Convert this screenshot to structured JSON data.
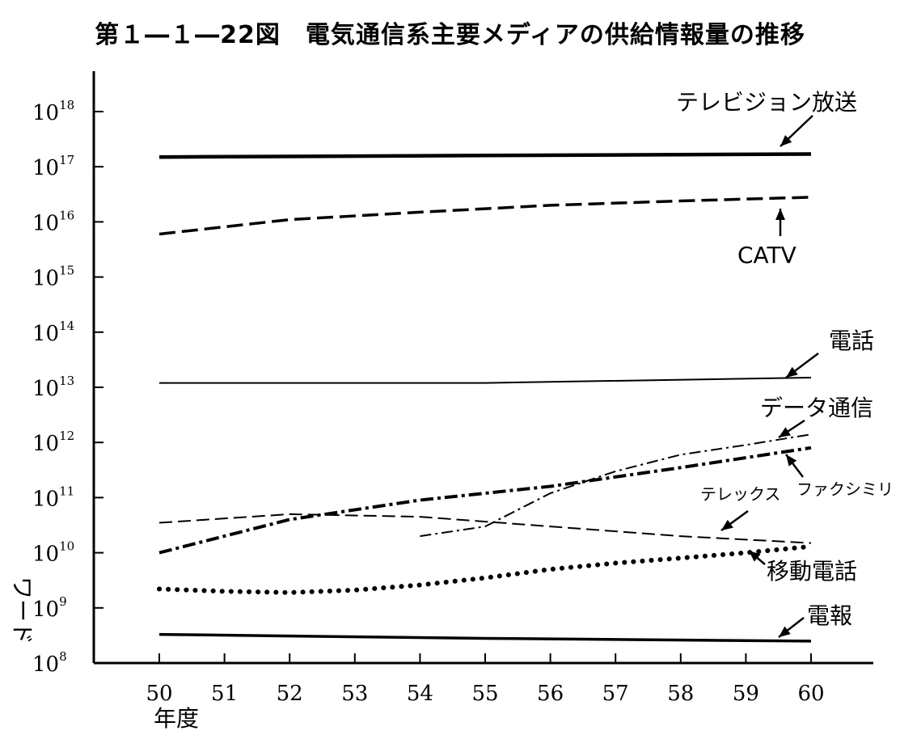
{
  "chart_data": {
    "type": "line",
    "title": "第１―１―22図　電気通信系主要メディアの供給情報量の推移",
    "xlabel": "年度",
    "ylabel": "ワード",
    "y_scale": "log",
    "ylim": [
      100000000,
      1000000000000000000
    ],
    "y_tick_base": "10",
    "y_tick_exponents": [
      "8",
      "9",
      "10",
      "11",
      "12",
      "13",
      "14",
      "15",
      "16",
      "17",
      "18"
    ],
    "x_ticks": [
      "50",
      "51",
      "52",
      "53",
      "54",
      "55",
      "56",
      "57",
      "58",
      "59",
      "60"
    ],
    "grid": false,
    "legend": "none (direct labels)",
    "series": [
      {
        "name": "テレビジョン放送",
        "style": "solid-thick",
        "x": [
          50,
          55,
          60
        ],
        "y": [
          1.5e+17,
          1.6e+17,
          1.7e+17
        ]
      },
      {
        "name": "CATV",
        "style": "dashed-thick",
        "x": [
          50,
          52,
          54,
          56,
          58,
          60
        ],
        "y": [
          6000000000000000.0,
          1.1e+16,
          1.5e+16,
          2e+16,
          2.4e+16,
          2.8e+16
        ]
      },
      {
        "name": "電話",
        "style": "solid-thin",
        "x": [
          50,
          55,
          60
        ],
        "y": [
          12000000000000.0,
          12000000000000.0,
          15000000000000.0
        ]
      },
      {
        "name": "データ通信",
        "style": "dash-dot-thin",
        "x": [
          54,
          55,
          56,
          57,
          58,
          59,
          60
        ],
        "y": [
          20000000000.0,
          30000000000.0,
          120000000000.0,
          300000000000.0,
          600000000000.0,
          900000000000.0,
          1400000000000.0
        ]
      },
      {
        "name": "ファクシミリ",
        "style": "dash-dot-thick",
        "x": [
          50,
          52,
          54,
          56,
          58,
          60
        ],
        "y": [
          10000000000.0,
          40000000000.0,
          90000000000.0,
          160000000000.0,
          350000000000.0,
          800000000000.0
        ]
      },
      {
        "name": "テレックス",
        "style": "dashed-thin",
        "x": [
          50,
          52,
          54,
          56,
          58,
          60
        ],
        "y": [
          35000000000.0,
          50000000000.0,
          45000000000.0,
          30000000000.0,
          20000000000.0,
          15000000000.0
        ]
      },
      {
        "name": "移動電話",
        "style": "dotted",
        "x": [
          50,
          51,
          52,
          53,
          54,
          55,
          56,
          57,
          58,
          59,
          60
        ],
        "y": [
          2200000000.0,
          2000000000.0,
          1900000000.0,
          2100000000.0,
          2600000000.0,
          3500000000.0,
          5000000000.0,
          6500000000.0,
          8000000000.0,
          10000000000.0,
          13000000000.0
        ]
      },
      {
        "name": "電報",
        "style": "solid-medium",
        "x": [
          50,
          55,
          60
        ],
        "y": [
          330000000.0,
          280000000.0,
          250000000.0
        ]
      }
    ]
  }
}
